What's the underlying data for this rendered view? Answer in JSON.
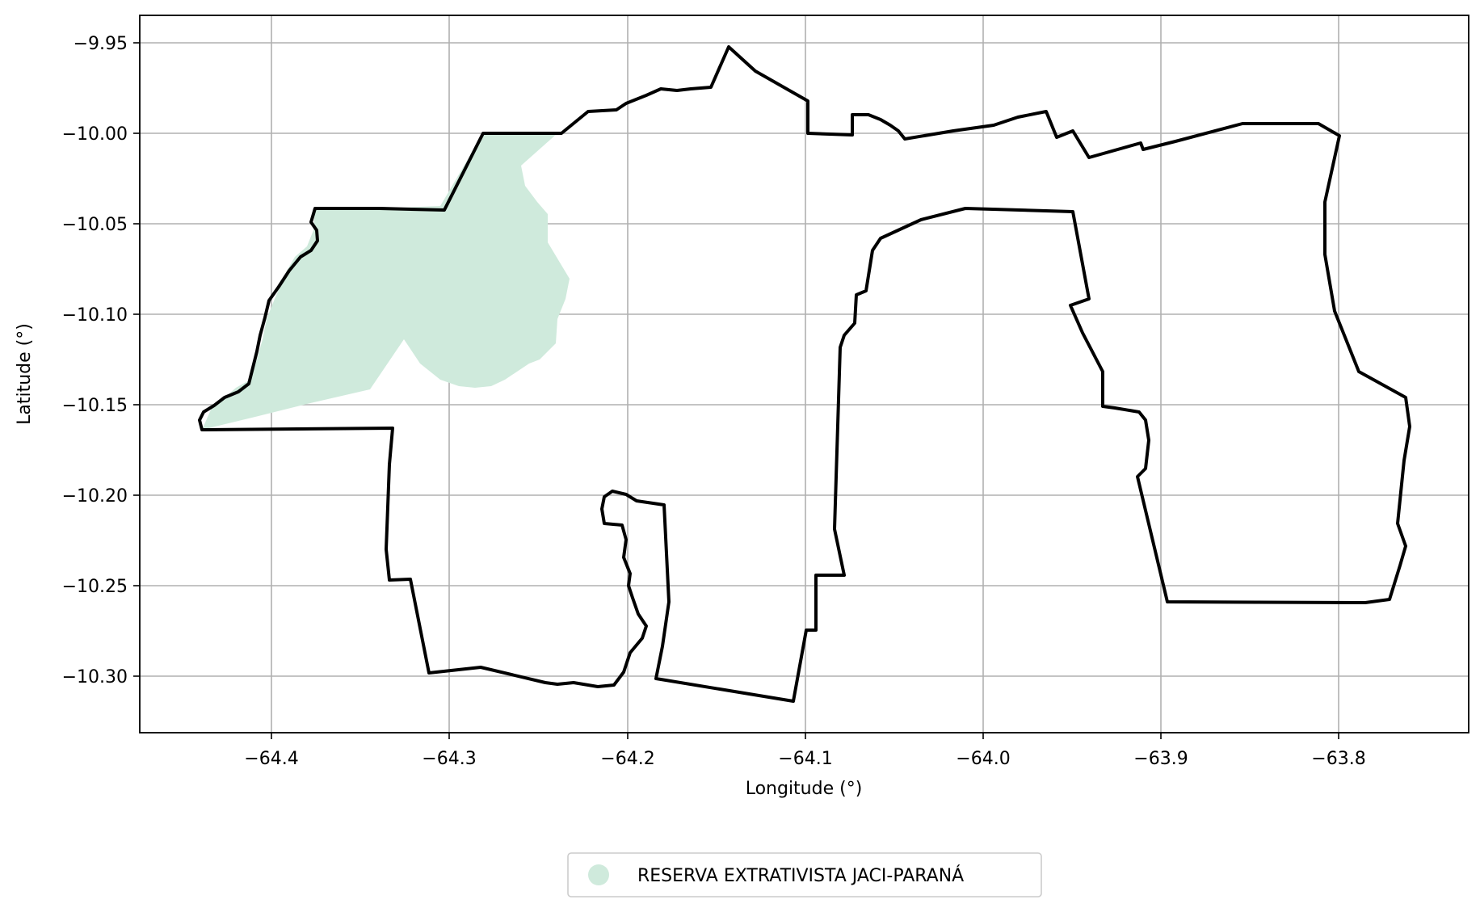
{
  "map": {
    "xlabel": "Longitude (°)",
    "ylabel": "Latitude (°)",
    "x_ticks": [
      "−64.4",
      "−64.3",
      "−64.2",
      "−64.1",
      "−64.0",
      "−63.9",
      "−63.8"
    ],
    "y_ticks": [
      "−9.95",
      "−10.00",
      "−10.05",
      "−10.10",
      "−10.15",
      "−10.20",
      "−10.25",
      "−10.30"
    ],
    "grid": true,
    "legend": {
      "placement": "bottom-center",
      "entries": [
        {
          "label": "RESERVA EXTRATIVISTA JACI-PARANÁ",
          "color": "#cfeadc"
        }
      ]
    },
    "colors": {
      "boundary": "#000000",
      "reserve_fill": "#cfeadc",
      "grid": "#b0b0b0"
    }
  }
}
